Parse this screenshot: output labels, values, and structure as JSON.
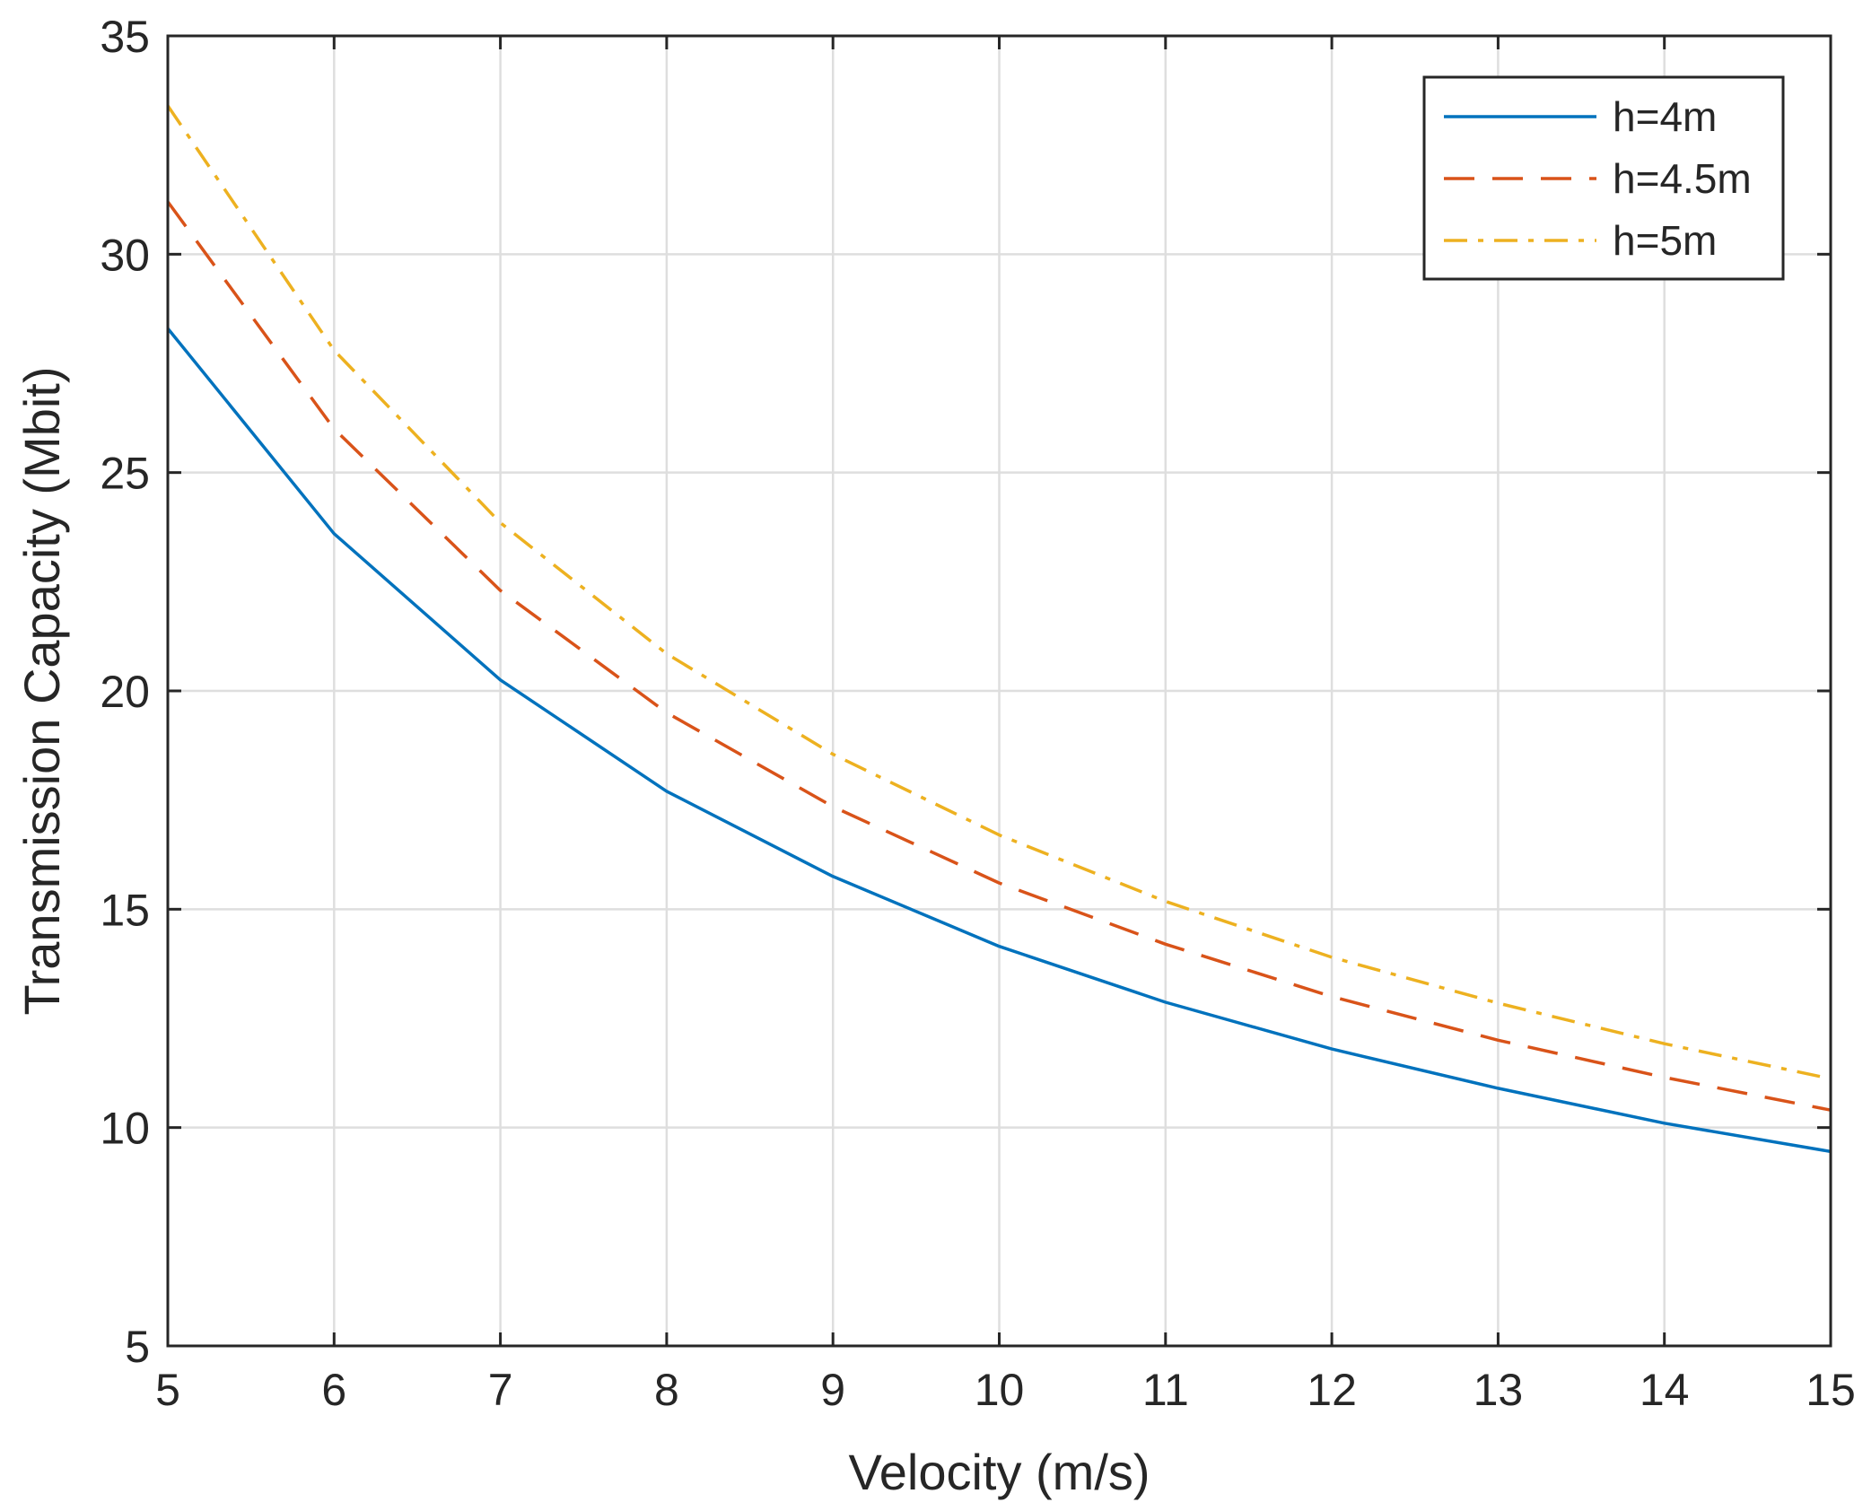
{
  "chart_data": {
    "type": "line",
    "title": "",
    "xlabel": "Velocity (m/s)",
    "ylabel": "Transmission Capacity (Mbit)",
    "xlim": [
      5,
      15
    ],
    "ylim": [
      5,
      35
    ],
    "xticks": [
      5,
      6,
      7,
      8,
      9,
      10,
      11,
      12,
      13,
      14,
      15
    ],
    "yticks": [
      5,
      10,
      15,
      20,
      25,
      30,
      35
    ],
    "grid": true,
    "legend_position": "top-right",
    "x": [
      5,
      6,
      7,
      8,
      9,
      10,
      11,
      12,
      13,
      14,
      15
    ],
    "series": [
      {
        "name": "h=4m",
        "color": "#0072BD",
        "style": "solid",
        "values": [
          28.3,
          23.6,
          20.25,
          17.7,
          15.75,
          14.15,
          12.87,
          11.8,
          10.9,
          10.1,
          9.45
        ]
      },
      {
        "name": "h=4.5m",
        "color": "#D95319",
        "style": "dashed",
        "values": [
          31.2,
          26.0,
          22.3,
          19.5,
          17.35,
          15.6,
          14.2,
          13.0,
          12.0,
          11.15,
          10.4
        ]
      },
      {
        "name": "h=5m",
        "color": "#EDB120",
        "style": "dashdot",
        "values": [
          33.4,
          27.8,
          23.85,
          20.85,
          18.55,
          16.7,
          15.18,
          13.9,
          12.85,
          11.92,
          11.12
        ]
      }
    ]
  }
}
